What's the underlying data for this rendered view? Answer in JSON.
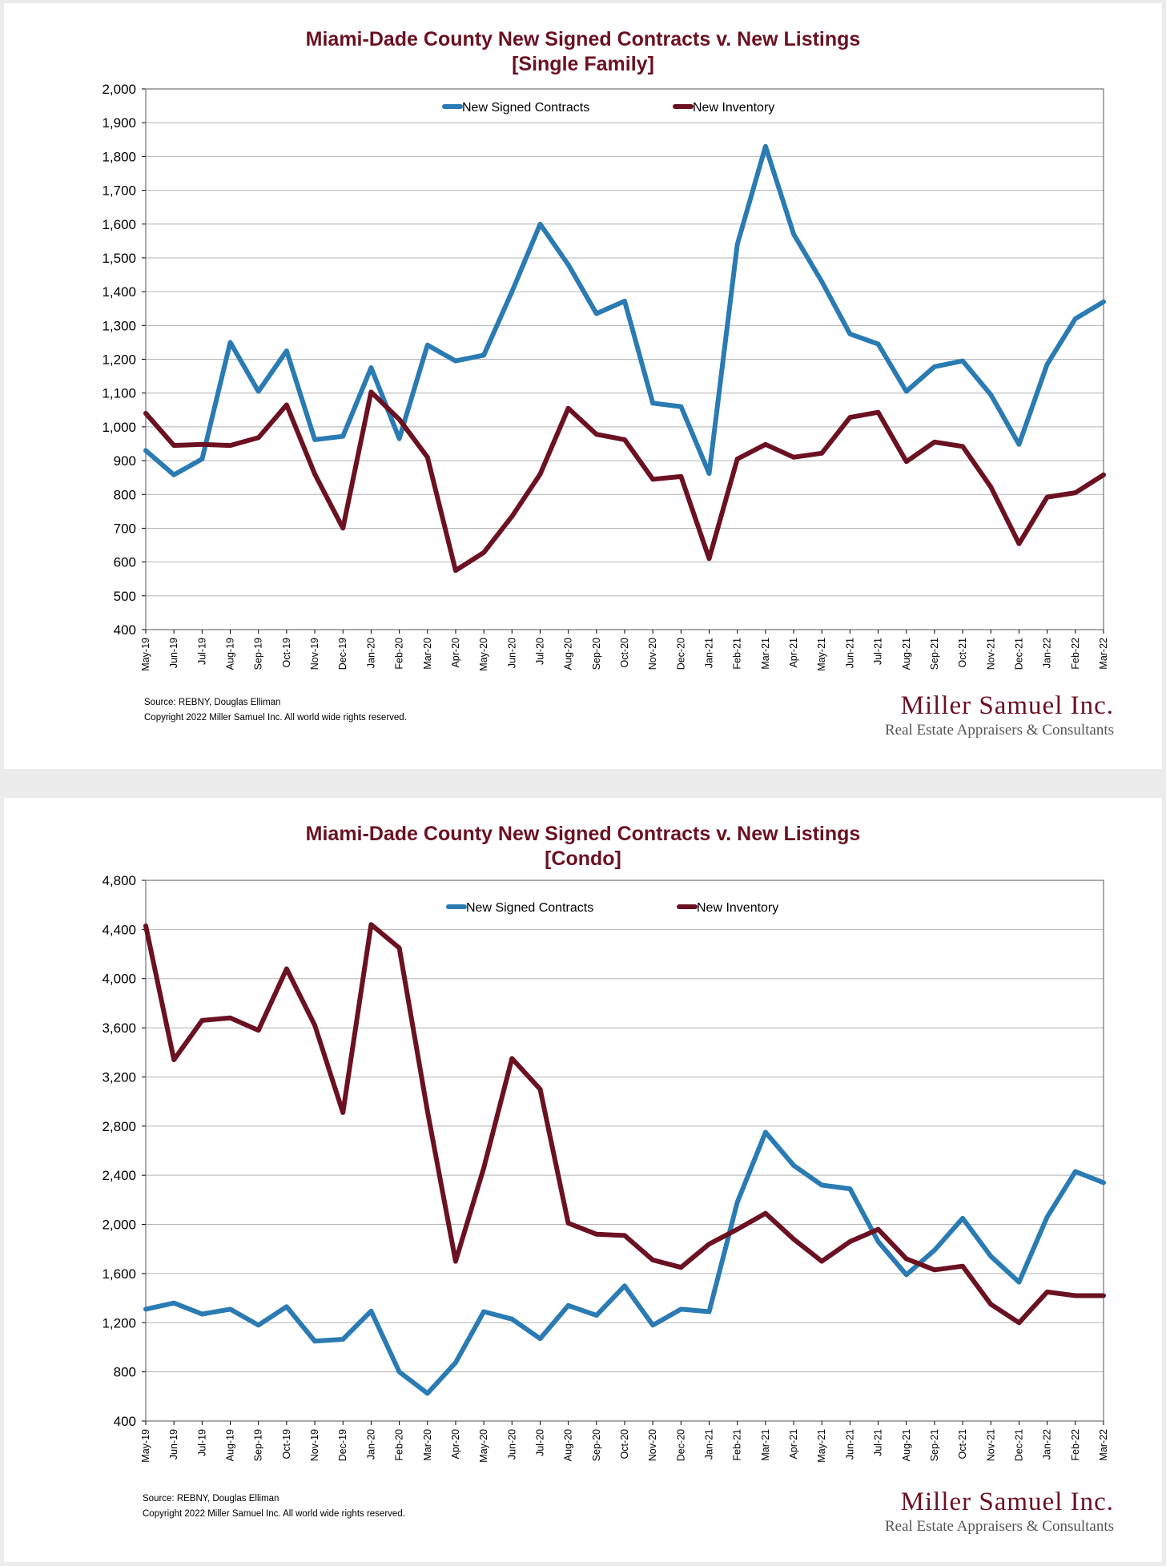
{
  "charts": [
    {
      "title_line1": "Miami-Dade County New Signed Contracts v. New Listings",
      "title_line2": "[Single Family]",
      "source": "Source: REBNY, Douglas Elliman",
      "copyright": "Copyright 2022 Miller Samuel Inc.  All world wide rights reserved.",
      "logo_name": "Miller Samuel Inc.",
      "logo_sub": "Real Estate Appraisers & Consultants"
    },
    {
      "title_line1": "Miami-Dade County New Signed Contracts v. New Listings",
      "title_line2": "[Condo]",
      "source": "Source: REBNY, Douglas Elliman",
      "copyright": "Copyright 2022 Miller Samuel Inc.  All world wide rights reserved.",
      "logo_name": "Miller Samuel Inc.",
      "logo_sub": "Real Estate Appraisers & Consultants"
    }
  ],
  "colors": {
    "contracts": "#2a7bb3",
    "inventory": "#6b1121",
    "grid": "#b3b3b3"
  },
  "chart_data": [
    {
      "type": "line",
      "title": "Miami-Dade County New Signed Contracts v. New Listings [Single Family]",
      "categories": [
        "May-19",
        "Jun-19",
        "Jul-19",
        "Aug-19",
        "Sep-19",
        "Oct-19",
        "Nov-19",
        "Dec-19",
        "Jan-20",
        "Feb-20",
        "Mar-20",
        "Apr-20",
        "May-20",
        "Jun-20",
        "Jul-20",
        "Aug-20",
        "Sep-20",
        "Oct-20",
        "Nov-20",
        "Dec-20",
        "Jan-21",
        "Feb-21",
        "Mar-21",
        "Apr-21",
        "May-21",
        "Jun-21",
        "Jul-21",
        "Aug-21",
        "Sep-21",
        "Oct-21",
        "Nov-21",
        "Dec-21",
        "Jan-22",
        "Feb-22",
        "Mar-22"
      ],
      "yticks": [
        "2,000",
        "1,900",
        "1,800",
        "1,700",
        "1,600",
        "1,500",
        "1,400",
        "1,300",
        "1,200",
        "1,100",
        "1,000",
        "900",
        "800",
        "700",
        "600",
        "500",
        "400"
      ],
      "ylim": [
        400,
        2000
      ],
      "legend": "top-center",
      "series": [
        {
          "name": "New Signed Contracts",
          "values": [
            930,
            858,
            905,
            1250,
            1105,
            1225,
            962,
            972,
            1175,
            965,
            1242,
            1195,
            1212,
            1400,
            1600,
            1480,
            1335,
            1372,
            1070,
            1060,
            862,
            1540,
            1830,
            1570,
            1430,
            1275,
            1245,
            1105,
            1178,
            1195,
            1095,
            948,
            1185,
            1320,
            1370
          ]
        },
        {
          "name": "New Inventory",
          "values": [
            1040,
            945,
            948,
            945,
            968,
            1065,
            860,
            700,
            1103,
            1022,
            910,
            575,
            628,
            735,
            860,
            1055,
            978,
            962,
            845,
            853,
            610,
            905,
            948,
            910,
            922,
            1028,
            1043,
            897,
            955,
            942,
            822,
            654,
            792,
            805,
            858
          ]
        }
      ]
    },
    {
      "type": "line",
      "title": "Miami-Dade County New Signed Contracts v. New Listings [Condo]",
      "categories": [
        "May-19",
        "Jun-19",
        "Jul-19",
        "Aug-19",
        "Sep-19",
        "Oct-19",
        "Nov-19",
        "Dec-19",
        "Jan-20",
        "Feb-20",
        "Mar-20",
        "Apr-20",
        "May-20",
        "Jun-20",
        "Jul-20",
        "Aug-20",
        "Sep-20",
        "Oct-20",
        "Nov-20",
        "Dec-20",
        "Jan-21",
        "Feb-21",
        "Mar-21",
        "Apr-21",
        "May-21",
        "Jun-21",
        "Jul-21",
        "Aug-21",
        "Sep-21",
        "Oct-21",
        "Nov-21",
        "Dec-21",
        "Jan-22",
        "Feb-22",
        "Mar-22"
      ],
      "yticks": [
        "4,800",
        "4,400",
        "4,000",
        "3,600",
        "3,200",
        "2,800",
        "2,400",
        "2,000",
        "1,600",
        "1,200",
        "800",
        "400"
      ],
      "ylim": [
        400,
        4800
      ],
      "legend": "top-center",
      "series": [
        {
          "name": "New Signed Contracts",
          "values": [
            1310,
            1360,
            1270,
            1310,
            1180,
            1330,
            1050,
            1065,
            1295,
            800,
            625,
            875,
            1290,
            1230,
            1070,
            1340,
            1260,
            1500,
            1180,
            1310,
            1290,
            2180,
            2750,
            2480,
            2320,
            2290,
            1860,
            1590,
            1790,
            2050,
            1740,
            1530,
            2060,
            2430,
            2340
          ]
        },
        {
          "name": "New Inventory",
          "values": [
            4430,
            3340,
            3660,
            3680,
            3580,
            4080,
            3620,
            2910,
            4440,
            4250,
            2920,
            1700,
            2460,
            3350,
            3100,
            2010,
            1920,
            1910,
            1710,
            1650,
            1840,
            1960,
            2090,
            1880,
            1700,
            1860,
            1960,
            1720,
            1630,
            1660,
            1350,
            1200,
            1450,
            1420,
            1420
          ]
        }
      ]
    }
  ]
}
